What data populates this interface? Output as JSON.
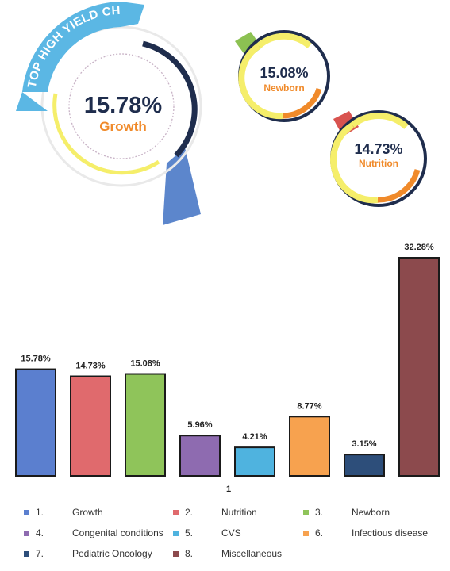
{
  "banner": {
    "text": "TOP HIGH YIELD CHAPTER"
  },
  "highlights": [
    {
      "percent": "15.78%",
      "label": "Growth"
    },
    {
      "percent": "15.08%",
      "label": "Newborn"
    },
    {
      "percent": "14.73%",
      "label": "Nutrition"
    }
  ],
  "chart_data": {
    "type": "bar",
    "title": "",
    "xlabel": "",
    "ylabel": "",
    "x_tick_label": "1",
    "ylim": [
      0,
      35
    ],
    "grid": false,
    "legend_position": "bottom",
    "categories": [
      "Growth",
      "Nutrition",
      "Newborn",
      "Congenital conditions",
      "CVS",
      "Infectious disease",
      "Pediatric Oncology",
      "Miscellaneous"
    ],
    "series": [
      {
        "name": "1.",
        "category": "Growth",
        "value": 15.78,
        "label": "15.78%",
        "color": "#5b7fcf"
      },
      {
        "name": "2.",
        "category": "Nutrition",
        "value": 14.73,
        "label": "14.73%",
        "color": "#e06a6d"
      },
      {
        "name": "3.",
        "category": "Newborn",
        "value": 15.08,
        "label": "15.08%",
        "color": "#8fc45a"
      },
      {
        "name": "4.",
        "category": "Congenital conditions",
        "value": 5.96,
        "label": "5.96%",
        "color": "#8e6bb0"
      },
      {
        "name": "5.",
        "category": "CVS",
        "value": 4.21,
        "label": "4.21%",
        "color": "#4fb3df"
      },
      {
        "name": "6.",
        "category": "Infectious disease",
        "value": 8.77,
        "label": "8.77%",
        "color": "#f7a24f"
      },
      {
        "name": "7.",
        "category": "Pediatric Oncology",
        "value": 3.15,
        "label": "3.15%",
        "color": "#2d4e7a"
      },
      {
        "name": "8.",
        "category": "Miscellaneous",
        "value": 32.28,
        "label": "32.28%",
        "color": "#8c4a4d"
      }
    ]
  },
  "colors": {
    "navy": "#1f2d4d",
    "yellow": "#f5ee6a",
    "orange": "#f08a2a",
    "banner_blue": "#5bb7e4",
    "wedge_blue": "#5c86cc",
    "badge_green": "#8cc152",
    "badge_red": "#d9534f",
    "bar_border": "#1a1a1a"
  }
}
